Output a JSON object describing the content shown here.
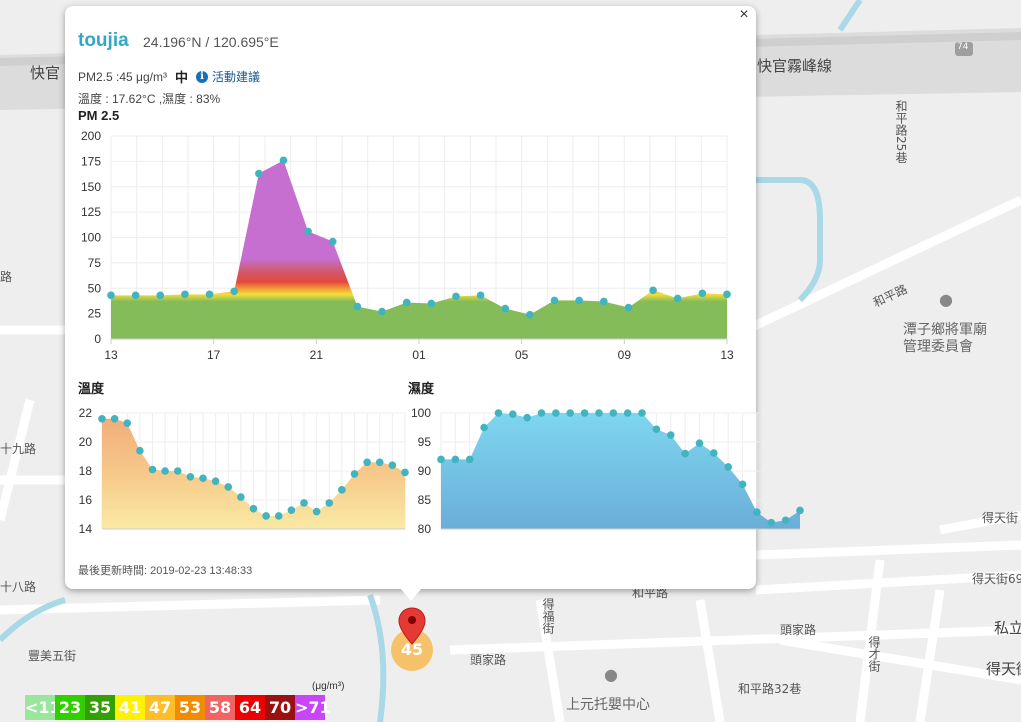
{
  "popup": {
    "station": "toujia",
    "coords": "24.196°N / 120.695°E",
    "pm_text": "PM2.5 :45 μg/m³",
    "pm_level": "中",
    "advice_label": "活動建議",
    "weather_text": "溫度 : 17.62°C ,濕度 : 83%",
    "close_label": "×",
    "updated": "最後更新時間: 2019-02-23 13:48:33"
  },
  "charts": {
    "pm": {
      "title": "PM 2.5",
      "y_ticks": [
        "200",
        "175",
        "150",
        "125",
        "100",
        "75",
        "50",
        "25",
        "0"
      ],
      "x_ticks": [
        "13",
        "17",
        "21",
        "01",
        "05",
        "09",
        "13"
      ]
    },
    "temp": {
      "title": "溫度",
      "y_ticks": [
        "22",
        "20",
        "18",
        "16",
        "14"
      ]
    },
    "humid": {
      "title": "濕度",
      "y_ticks": [
        "100",
        "95",
        "90",
        "85",
        "80"
      ]
    }
  },
  "chart_data": [
    {
      "type": "area",
      "title": "PM 2.5",
      "ylim": [
        0,
        200
      ],
      "x_tick_labels": [
        "13",
        "17",
        "21",
        "01",
        "05",
        "09",
        "13"
      ],
      "values": [
        43,
        43,
        43,
        44,
        44,
        47,
        163,
        176,
        106,
        96,
        32,
        27,
        36,
        35,
        42,
        43,
        30,
        24,
        38,
        38,
        37,
        31,
        48,
        40,
        45,
        44
      ]
    },
    {
      "type": "area",
      "title": "溫度",
      "ylim": [
        14,
        22
      ],
      "values": [
        21.6,
        21.6,
        21.3,
        19.4,
        18.1,
        18.0,
        18.0,
        17.6,
        17.5,
        17.3,
        16.9,
        16.2,
        15.4,
        14.9,
        14.9,
        15.3,
        15.8,
        15.2,
        15.8,
        16.7,
        17.8,
        18.6,
        18.6,
        18.4,
        17.9
      ]
    },
    {
      "type": "area",
      "title": "濕度",
      "ylim": [
        80,
        100
      ],
      "values": [
        92,
        92,
        92,
        97.5,
        100,
        99.8,
        99.2,
        100,
        100,
        100,
        100,
        100,
        100,
        100,
        100,
        97.2,
        96.2,
        93,
        94.8,
        93.1,
        90.7,
        87.7,
        82.9,
        81.1,
        81.5,
        83.2
      ]
    }
  ],
  "legend": {
    "unit": "(μg/m³)",
    "cells": [
      {
        "label": "<11",
        "color": "#9ce59c"
      },
      {
        "label": "23",
        "color": "#31cf00"
      },
      {
        "label": "35",
        "color": "#31a000"
      },
      {
        "label": "41",
        "color": "#fff200"
      },
      {
        "label": "47",
        "color": "#ffbe27"
      },
      {
        "label": "53",
        "color": "#f18c00"
      },
      {
        "label": "58",
        "color": "#f06464"
      },
      {
        "label": "64",
        "color": "#ec0000"
      },
      {
        "label": "70",
        "color": "#991111"
      },
      {
        "label": ">71",
        "color": "#c945f9"
      }
    ]
  },
  "marker": {
    "value": "45",
    "color": "#f5c26b"
  },
  "map_labels": {
    "road_top": "快官霧峰線",
    "road_top_left": "快官",
    "road_heping25": "和平路25巷",
    "road_heping": "和平路",
    "poi_temple": "潭子鄉將軍廟\n管理委員會",
    "road_shi": "十九路",
    "road_shiba": "十八路",
    "road_fengmei": "豐美五街",
    "road_toujia": "頭家路",
    "road_toujia2": "頭家路",
    "road_fufu": "得福街",
    "road_deti": "得天街",
    "road_deti69": "得天街69",
    "road_heping_b": "和平路",
    "road_heping32": "和平路32巷",
    "poi_daycare": "上元托嬰中心",
    "road_si": "私立",
    "road_detian2": "得天街",
    "road_decai": "得才街",
    "road_road": "路",
    "route_74": "74"
  }
}
